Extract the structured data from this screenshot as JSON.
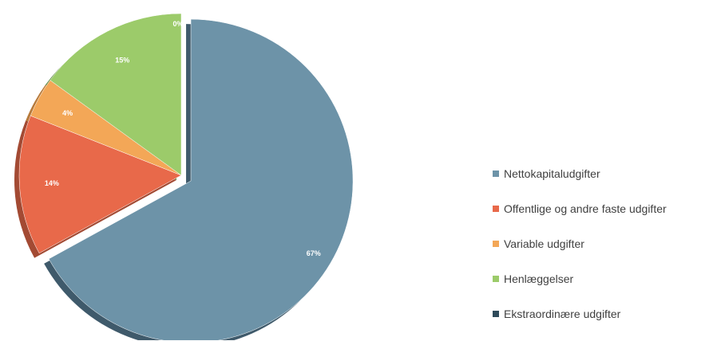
{
  "chart_data": {
    "type": "pie",
    "categories": [
      "Nettokapitaludgifter",
      "Offentlige og andre faste udgifter",
      "Variable udgifter",
      "Henlæggelser",
      "Ekstraordinære udgifter"
    ],
    "values": [
      67,
      14,
      4,
      15,
      0
    ],
    "data_labels": [
      "67%",
      "14%",
      "4%",
      "15%",
      "0%"
    ],
    "colors": [
      "#6d93a8",
      "#e8694a",
      "#f3a757",
      "#9ccb6a",
      "#2e4a5a"
    ],
    "shadow_colors": [
      "#3f5a6b",
      "#a34a33",
      "#b77a3b",
      "#5f8a45",
      "#1e2f39"
    ],
    "exploded": true,
    "legend_position": "right"
  }
}
